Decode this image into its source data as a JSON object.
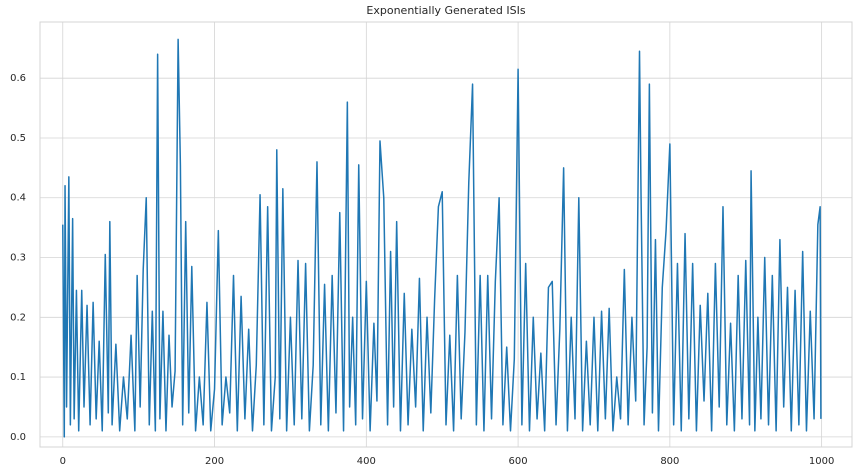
{
  "chart_data": {
    "type": "line",
    "title": "Exponentially Generated ISIs",
    "color": "#1f77b4",
    "grid": true,
    "xlim": [
      -30,
      1040
    ],
    "ylim": [
      -0.017,
      0.694
    ],
    "xticks": [
      0,
      200,
      400,
      600,
      800,
      1000
    ],
    "yticks": [
      {
        "value": 0,
        "label": "0.0"
      },
      0.1,
      0.2,
      0.3,
      0.4,
      0.5,
      0.6
    ],
    "x": [
      0,
      2,
      3,
      5,
      8,
      10,
      13,
      15,
      18,
      21,
      25,
      28,
      32,
      36,
      40,
      44,
      48,
      52,
      56,
      60,
      62,
      65,
      70,
      75,
      80,
      85,
      90,
      95,
      98,
      102,
      106,
      110,
      114,
      118,
      122,
      125,
      128,
      132,
      136,
      140,
      144,
      148,
      152,
      155,
      158,
      162,
      166,
      170,
      175,
      180,
      185,
      190,
      195,
      200,
      205,
      210,
      215,
      220,
      225,
      230,
      235,
      240,
      245,
      250,
      255,
      260,
      265,
      270,
      275,
      280,
      282,
      286,
      290,
      295,
      300,
      305,
      310,
      315,
      320,
      325,
      330,
      335,
      340,
      345,
      350,
      355,
      360,
      365,
      370,
      375,
      378,
      382,
      386,
      390,
      395,
      400,
      405,
      410,
      414,
      418,
      423,
      428,
      432,
      436,
      440,
      445,
      450,
      455,
      460,
      465,
      470,
      475,
      480,
      485,
      490,
      495,
      500,
      505,
      510,
      515,
      520,
      525,
      530,
      535,
      540,
      545,
      550,
      555,
      560,
      565,
      570,
      575,
      580,
      585,
      590,
      595,
      600,
      605,
      610,
      615,
      620,
      625,
      630,
      635,
      640,
      645,
      650,
      655,
      660,
      665,
      670,
      675,
      680,
      685,
      690,
      695,
      700,
      705,
      710,
      715,
      720,
      725,
      730,
      735,
      740,
      745,
      750,
      755,
      760,
      762,
      766,
      770,
      773,
      777,
      781,
      785,
      790,
      795,
      800,
      805,
      810,
      815,
      820,
      825,
      830,
      835,
      840,
      845,
      850,
      855,
      860,
      865,
      870,
      875,
      880,
      885,
      890,
      895,
      900,
      905,
      907,
      912,
      916,
      920,
      925,
      930,
      935,
      940,
      945,
      950,
      955,
      960,
      965,
      970,
      975,
      980,
      985,
      990,
      995,
      998,
      999
    ],
    "values": [
      0.355,
      0.0,
      0.42,
      0.05,
      0.435,
      0.02,
      0.365,
      0.03,
      0.245,
      0.01,
      0.245,
      0.05,
      0.22,
      0.02,
      0.225,
      0.03,
      0.16,
      0.01,
      0.305,
      0.04,
      0.36,
      0.02,
      0.155,
      0.01,
      0.1,
      0.03,
      0.17,
      0.01,
      0.27,
      0.05,
      0.28,
      0.4,
      0.02,
      0.21,
      0.01,
      0.64,
      0.03,
      0.21,
      0.01,
      0.17,
      0.05,
      0.11,
      0.665,
      0.455,
      0.02,
      0.36,
      0.04,
      0.285,
      0.01,
      0.1,
      0.02,
      0.225,
      0.01,
      0.08,
      0.345,
      0.02,
      0.1,
      0.04,
      0.27,
      0.01,
      0.235,
      0.03,
      0.18,
      0.01,
      0.12,
      0.405,
      0.02,
      0.385,
      0.01,
      0.1,
      0.48,
      0.03,
      0.415,
      0.01,
      0.2,
      0.02,
      0.295,
      0.03,
      0.29,
      0.01,
      0.12,
      0.46,
      0.02,
      0.255,
      0.01,
      0.27,
      0.04,
      0.375,
      0.01,
      0.56,
      0.05,
      0.2,
      0.02,
      0.455,
      0.03,
      0.26,
      0.01,
      0.19,
      0.06,
      0.495,
      0.4,
      0.02,
      0.31,
      0.05,
      0.36,
      0.01,
      0.24,
      0.02,
      0.18,
      0.05,
      0.265,
      0.01,
      0.2,
      0.04,
      0.23,
      0.385,
      0.41,
      0.02,
      0.17,
      0.01,
      0.27,
      0.03,
      0.175,
      0.425,
      0.59,
      0.02,
      0.27,
      0.01,
      0.27,
      0.03,
      0.26,
      0.4,
      0.02,
      0.15,
      0.01,
      0.13,
      0.615,
      0.02,
      0.29,
      0.01,
      0.2,
      0.03,
      0.14,
      0.01,
      0.25,
      0.26,
      0.02,
      0.18,
      0.45,
      0.01,
      0.2,
      0.03,
      0.4,
      0.01,
      0.16,
      0.02,
      0.2,
      0.01,
      0.21,
      0.03,
      0.215,
      0.01,
      0.1,
      0.03,
      0.28,
      0.02,
      0.2,
      0.06,
      0.645,
      0.405,
      0.02,
      0.15,
      0.59,
      0.04,
      0.33,
      0.01,
      0.25,
      0.345,
      0.49,
      0.02,
      0.29,
      0.01,
      0.34,
      0.03,
      0.29,
      0.01,
      0.22,
      0.06,
      0.24,
      0.01,
      0.29,
      0.05,
      0.385,
      0.02,
      0.19,
      0.01,
      0.27,
      0.03,
      0.295,
      0.02,
      0.445,
      0.01,
      0.2,
      0.03,
      0.3,
      0.02,
      0.27,
      0.01,
      0.33,
      0.05,
      0.25,
      0.01,
      0.245,
      0.02,
      0.31,
      0.01,
      0.21,
      0.03,
      0.355,
      0.385,
      0.03
    ]
  }
}
